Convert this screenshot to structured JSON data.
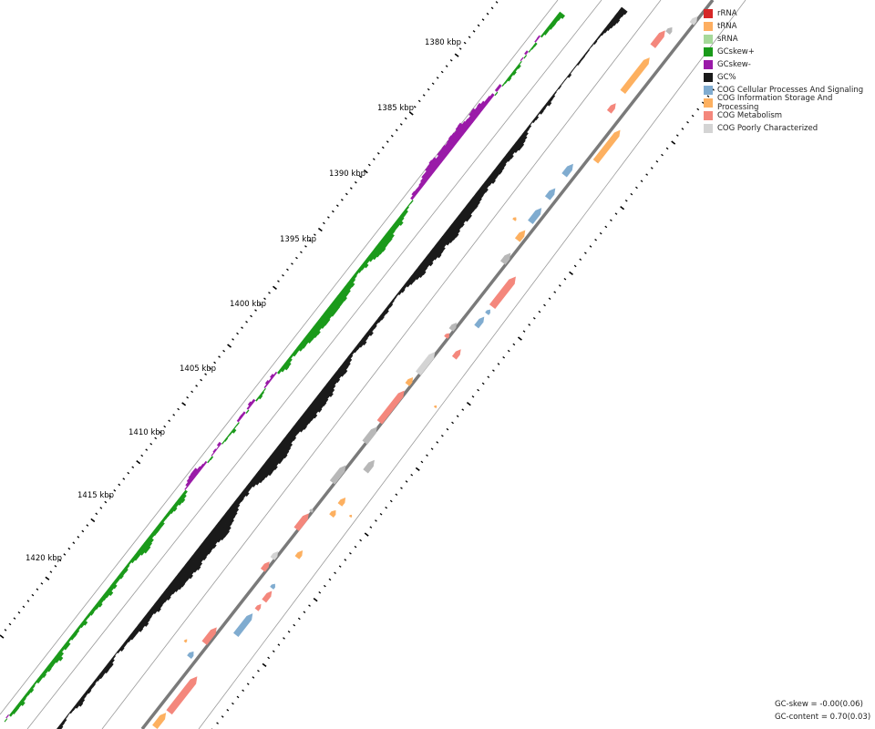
{
  "tick_labels": [
    "1380 kbp",
    "1385 kbp",
    "1390 kbp",
    "1395 kbp",
    "1400 kbp",
    "1405 kbp",
    "1410 kbp",
    "1415 kbp",
    "1420 kbp"
  ],
  "legend": [
    {
      "label": "rRNA",
      "color": "#d62728"
    },
    {
      "label": "tRNA",
      "color": "#fdae61"
    },
    {
      "label": "sRNA",
      "color": "#a6d99a"
    },
    {
      "label": "GCskew+",
      "color": "#1a9a1a"
    },
    {
      "label": "GCskew-",
      "color": "#9a1aa8"
    },
    {
      "label": "GC%",
      "color": "#1a1a1a"
    },
    {
      "label": "COG Cellular Processes And Signaling",
      "color": "#80acd0"
    },
    {
      "label": "COG Information Storage And Processing",
      "color": "#fdb060"
    },
    {
      "label": "COG Metabolism",
      "color": "#f4877c"
    },
    {
      "label": "COG Poorly Characterized",
      "color": "#d4d4d4"
    }
  ],
  "stats": {
    "gc_skew": "GC-skew = -0.00(0.06)",
    "gc_content": "GC-content = 0.70(0.03)"
  }
}
